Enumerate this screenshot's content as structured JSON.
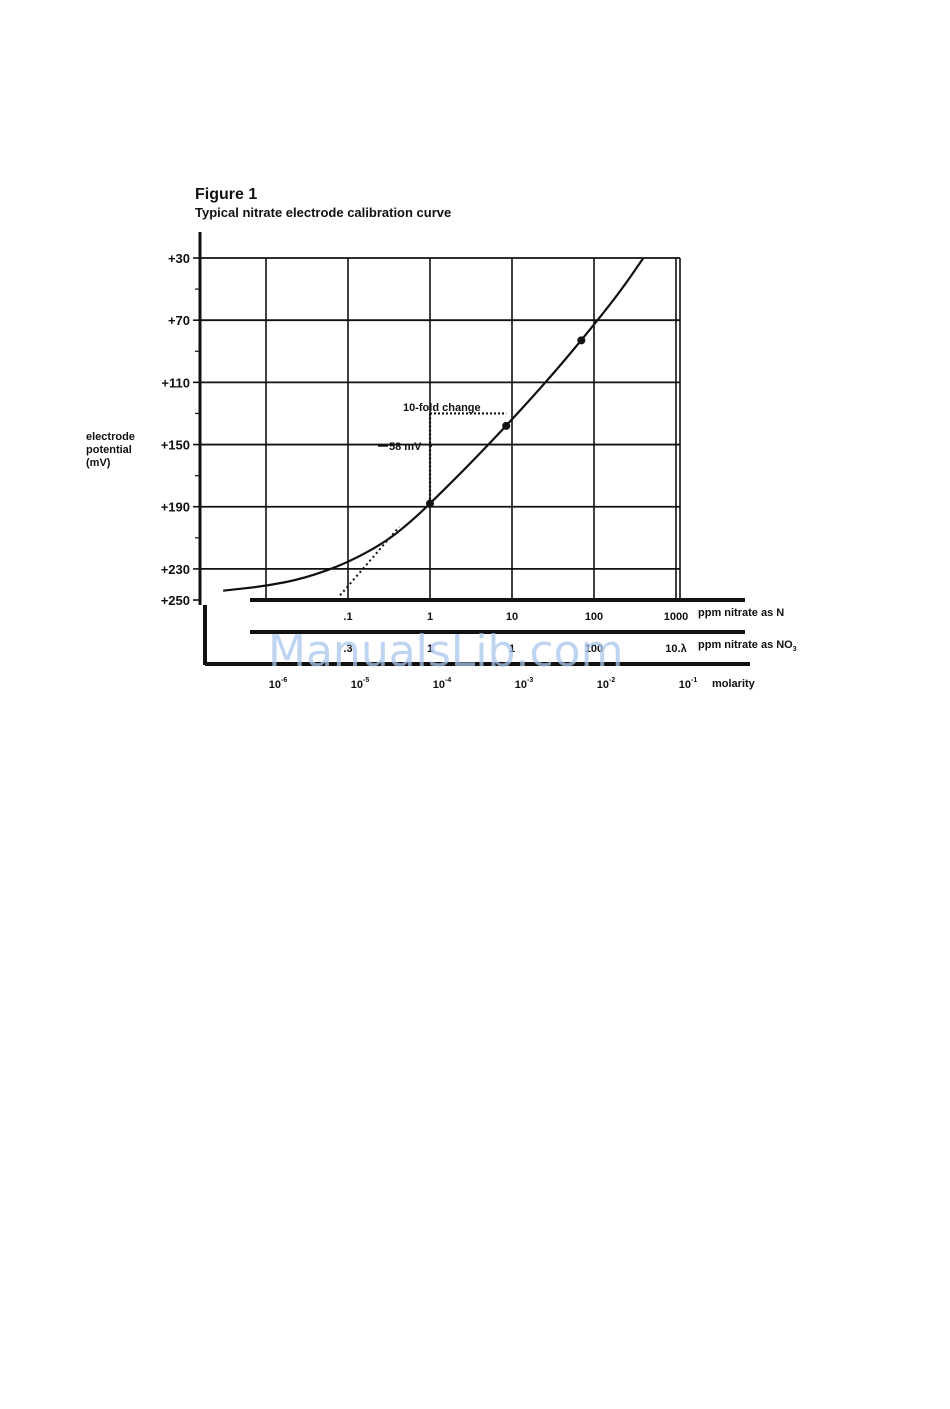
{
  "figure": {
    "label": "Figure 1",
    "caption": "Typical nitrate electrode calibration curve"
  },
  "watermark": "ManualsLib.com",
  "chart_data": {
    "type": "line",
    "title": "Typical nitrate electrode calibration curve",
    "ylabel_lines": [
      "electrode",
      "potential",
      "(mV)"
    ],
    "y_axis": {
      "inverted": true,
      "ylim": [
        30,
        250
      ],
      "ticks": [
        30,
        70,
        110,
        150,
        190,
        230,
        250
      ],
      "tick_labels": [
        "+30",
        "+70",
        "+110",
        "+150",
        "+190",
        "+230",
        "+250"
      ]
    },
    "x_axes": [
      {
        "name": "ppm nitrate as N",
        "label": "ppm nitrate as N",
        "scale": "log",
        "ticks": [
          0.1,
          1,
          10,
          100,
          1000
        ],
        "tick_labels": [
          ".1",
          "1",
          "10",
          "100",
          "1000"
        ]
      },
      {
        "name": "ppm nitrate as NO3",
        "label": "ppm nitrate as NO",
        "label_sub": "3",
        "scale": "log",
        "ticks": [
          0.443,
          4.43,
          44.3,
          443,
          4430
        ],
        "tick_labels": [
          ".3",
          "1",
          "1",
          "100",
          "10.λ"
        ]
      },
      {
        "name": "molarity",
        "label": "molarity",
        "scale": "log",
        "ticks": [
          1e-06,
          1e-05,
          0.0001,
          0.001,
          0.01,
          0.1
        ],
        "tick_labels": [
          {
            "base": "10",
            "exp": "-6"
          },
          {
            "base": "10",
            "exp": "-5"
          },
          {
            "base": "10",
            "exp": "-4"
          },
          {
            "base": "10",
            "exp": "-3"
          },
          {
            "base": "10",
            "exp": "-2"
          },
          {
            "base": "10",
            "exp": "-1"
          }
        ]
      }
    ],
    "grid": true,
    "series": [
      {
        "x_ppm_N": [
          0.003,
          0.01,
          0.03,
          0.1,
          0.3,
          0.6,
          1,
          3,
          10,
          30,
          70,
          200,
          400
        ],
        "y": [
          244,
          241,
          236,
          226,
          212,
          199,
          188,
          163,
          134,
          106,
          83,
          53,
          30
        ]
      }
    ],
    "marked_points": [
      {
        "x_ppm_N": 1,
        "y": 188
      },
      {
        "x_ppm_N": 8.5,
        "y": 138
      },
      {
        "x_ppm_N": 70,
        "y": 83
      }
    ],
    "extrapolation": {
      "x_ppm_N": [
        0.08,
        0.42
      ],
      "y": [
        247,
        203
      ]
    },
    "annotations": {
      "fold_label": "10-fold change",
      "mv_label": "58 mV",
      "fold_from": {
        "x_ppm_N": 1,
        "y": 130
      },
      "fold_to": {
        "x_ppm_N": 8.5,
        "y": 130
      },
      "mv_from": {
        "x_ppm_N": 1,
        "y": 130
      },
      "mv_to": {
        "x_ppm_N": 1,
        "y": 188
      }
    }
  }
}
